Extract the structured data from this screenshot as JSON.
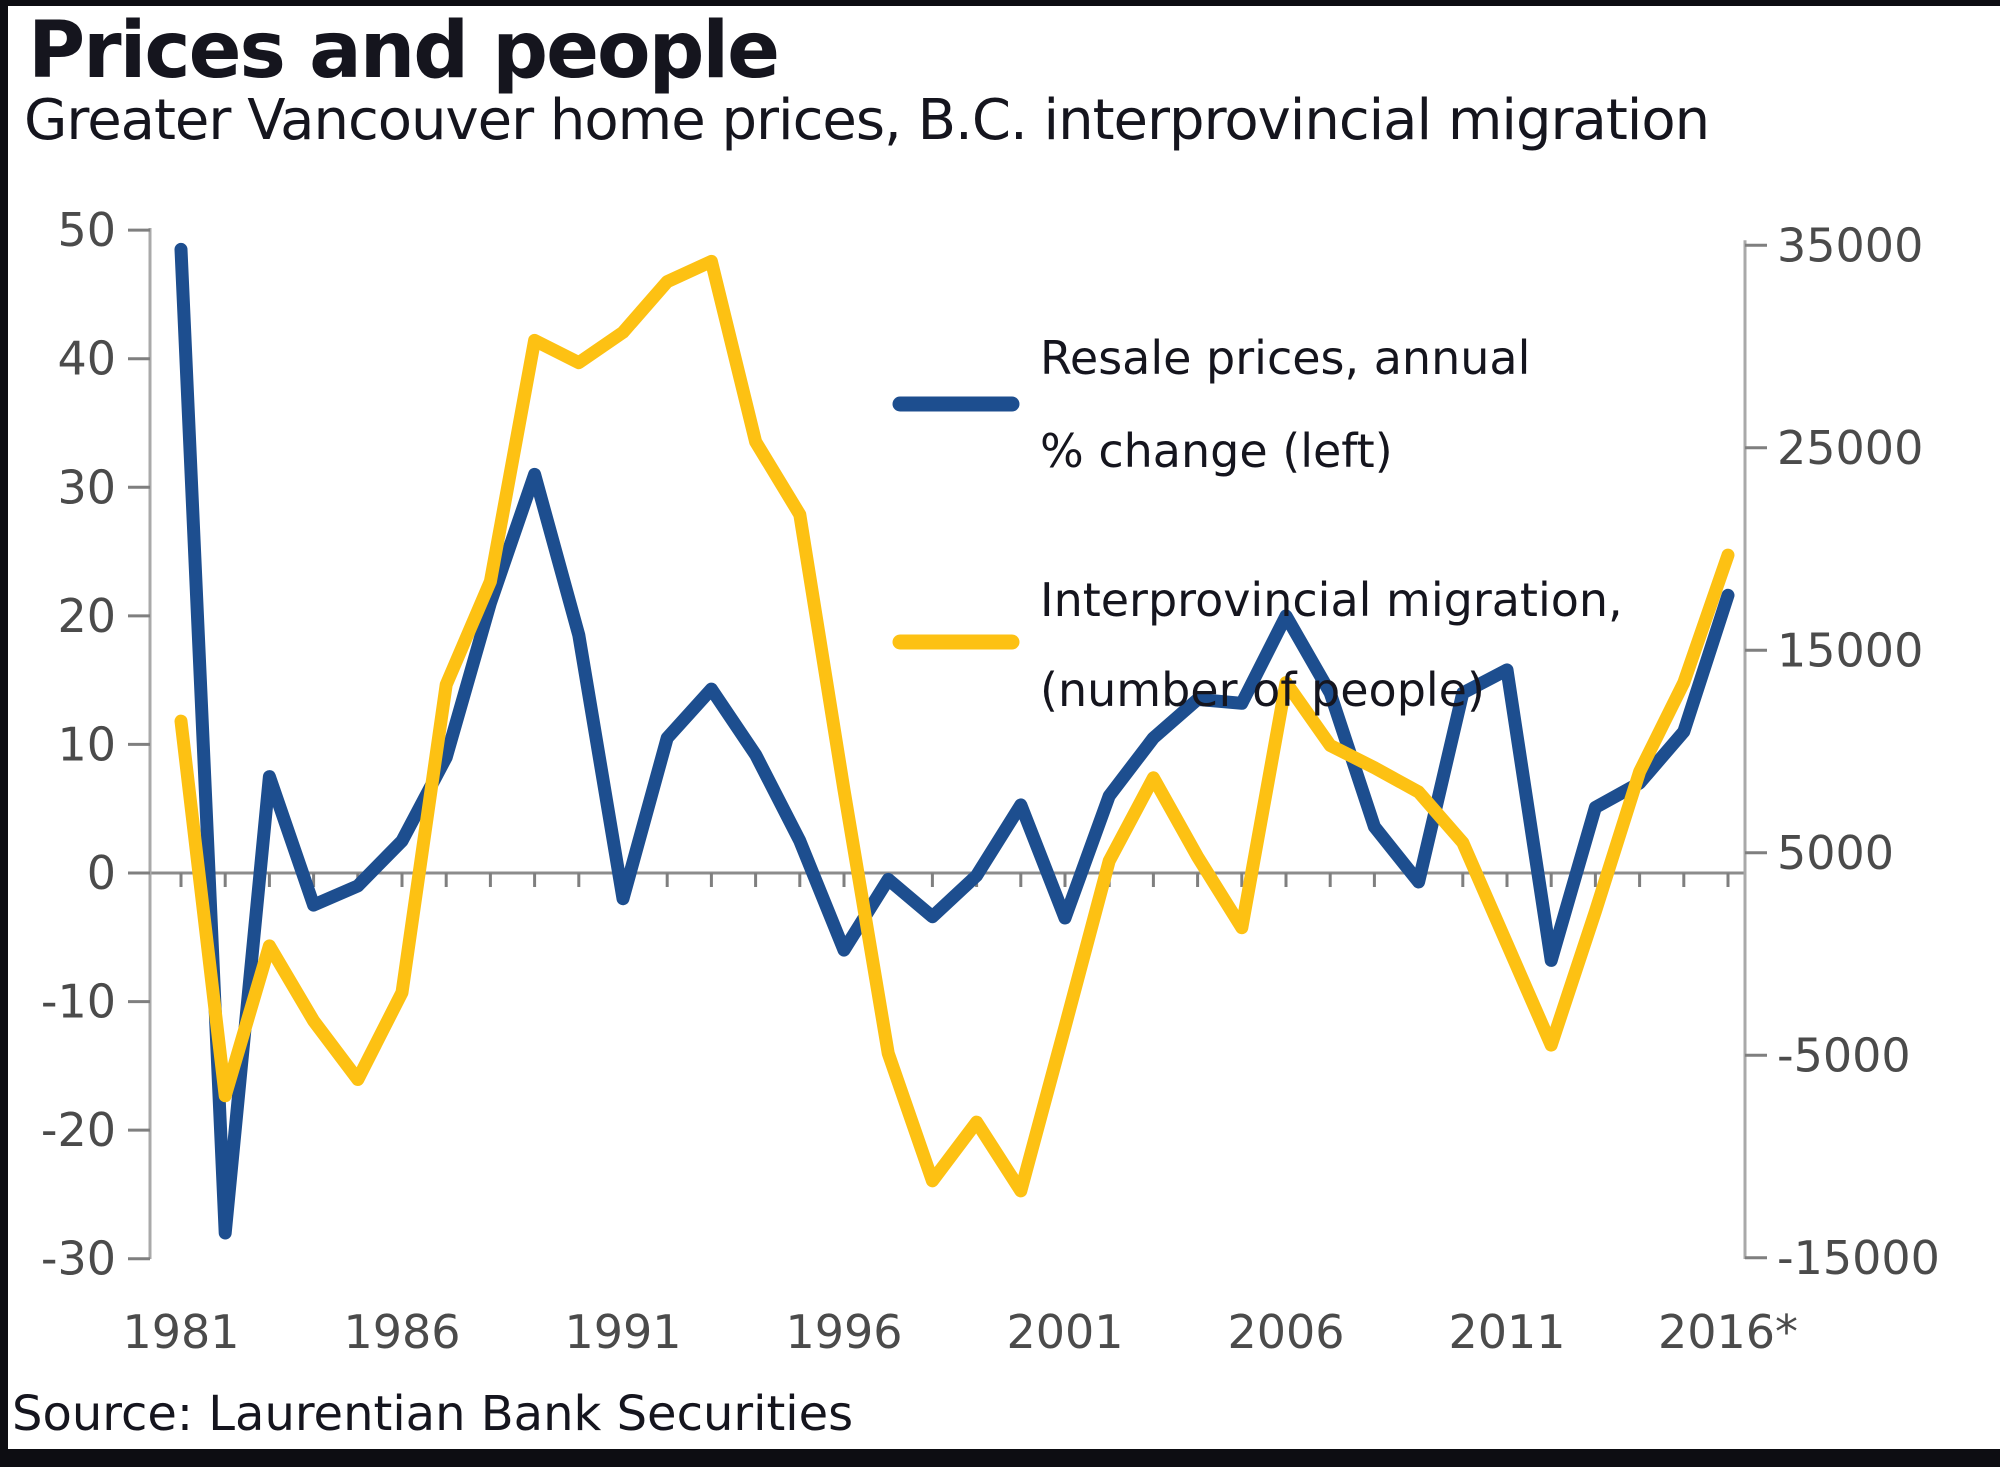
{
  "header": {
    "title": "Prices and people",
    "subtitle": "Greater Vancouver home prices, B.C. interprovincial migration"
  },
  "source": {
    "label": "Source: Laurentian Bank Securities"
  },
  "colors": {
    "resale_line": "#1d4e8f",
    "migration_line": "#fdc113",
    "axis_gray": "#8c8c8c",
    "text_dark": "#15151e",
    "tick_text": "#4b4b4b"
  },
  "chart_data": {
    "type": "line",
    "title": "Greater Vancouver home prices, B.C. interprovincial migration",
    "x": [
      1981,
      1982,
      1983,
      1984,
      1985,
      1986,
      1987,
      1988,
      1989,
      1990,
      1991,
      1992,
      1993,
      1994,
      1995,
      1996,
      1997,
      1998,
      1999,
      2000,
      2001,
      2002,
      2003,
      2004,
      2005,
      2006,
      2007,
      2008,
      2009,
      2010,
      2011,
      2012,
      2013,
      2014,
      2015,
      2016
    ],
    "x_tick_labels": [
      "1981",
      "1986",
      "1991",
      "1996",
      "2001",
      "2006",
      "2011",
      "2016*"
    ],
    "x_tick_years": [
      1981,
      1986,
      1991,
      1996,
      2001,
      2006,
      2011,
      2016
    ],
    "grid": false,
    "legend_position": "inside-top-right",
    "y_left": {
      "ticks": [
        50,
        40,
        30,
        20,
        10,
        0,
        -10,
        -20,
        -30
      ],
      "range": [
        -30,
        50
      ]
    },
    "y_right": {
      "ticks": [
        35000,
        25000,
        15000,
        5000,
        -5000,
        -15000
      ],
      "range": [
        -15000,
        35000
      ]
    },
    "series": [
      {
        "name": "Resale prices, annual % change (left)",
        "axis": "left",
        "color": "#1d4e8f",
        "values": [
          48.5,
          -28,
          7.5,
          -2.5,
          -1,
          2.5,
          9,
          21,
          31,
          18.5,
          -2,
          10.5,
          14.3,
          9.2,
          2.5,
          -6,
          -0.5,
          -3.4,
          -0.2,
          5.3,
          -3.5,
          6,
          10.5,
          13.5,
          13.2,
          20,
          14,
          3.6,
          -0.7,
          14,
          15.8,
          -6.8,
          5.1,
          7,
          11,
          21.6
        ]
      },
      {
        "name": "Interprovincial migration, (number of people)",
        "axis": "right",
        "color": "#fdc113",
        "values": [
          11500,
          -7000,
          400,
          -3300,
          -6200,
          -1900,
          13300,
          18400,
          30300,
          29200,
          30700,
          33200,
          34200,
          25300,
          21700,
          8100,
          -4900,
          -11200,
          -8300,
          -11700,
          -3600,
          4600,
          8700,
          4800,
          1300,
          13400,
          10300,
          9200,
          8000,
          5500,
          500,
          -4500,
          2100,
          9000,
          13400,
          19700
        ]
      }
    ],
    "legend": [
      {
        "lines": [
          "Resale prices, annual",
          "% change (left)"
        ]
      },
      {
        "lines": [
          "Interprovincial migration,",
          "(number of people)"
        ]
      }
    ]
  }
}
